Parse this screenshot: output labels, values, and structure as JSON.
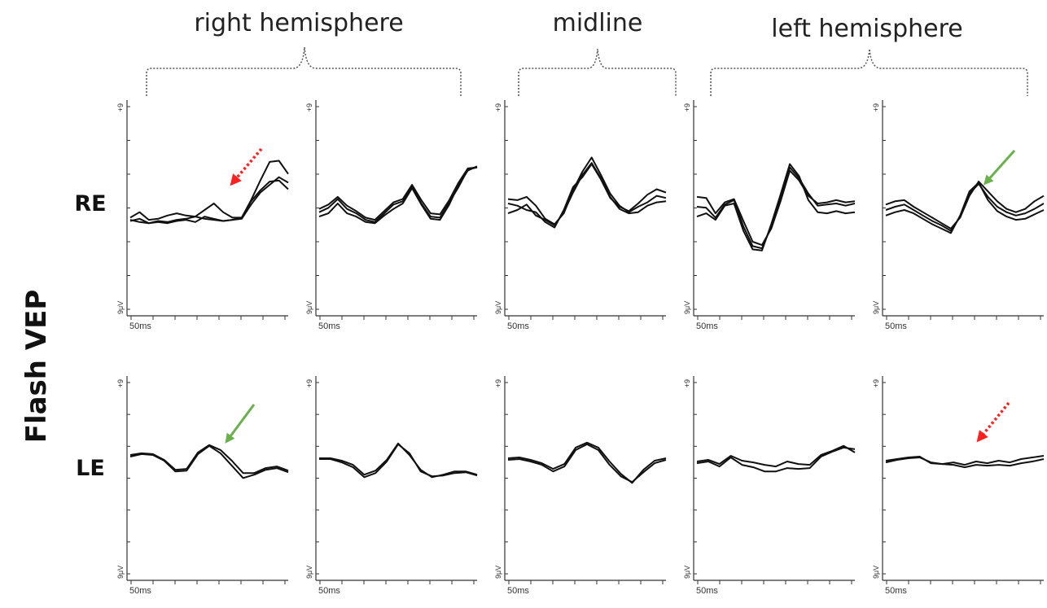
{
  "figure": {
    "y_title": "Flash VEP",
    "groups": [
      {
        "label": "right hemisphere"
      },
      {
        "label": "midline"
      },
      {
        "label": "left hemisphere"
      }
    ],
    "rows": [
      {
        "label": "RE"
      },
      {
        "label": "LE"
      }
    ],
    "panel_axis": {
      "x_tick_label": "50ms",
      "y_top_label": "+9",
      "y_bottom_label": "9μV"
    },
    "colors": {
      "trace": "#111111",
      "axis": "#333333",
      "brace": "#555555",
      "arrow_red": "#ff2020",
      "arrow_green": "#6ab04c"
    }
  },
  "chart_data": {
    "type": "line",
    "title": "",
    "xlabel": "",
    "ylabel": "Flash VEP",
    "x_tick_label": "50ms",
    "y_unit": "μV",
    "ylim": [
      -9,
      9
    ],
    "grid": false,
    "panels": [
      {
        "row": "RE",
        "column": 1,
        "group": "right hemisphere",
        "annotations": [
          {
            "type": "arrow",
            "style": "dotted",
            "color": "#ff2020"
          }
        ],
        "series": [
          {
            "values": [
              -1.0,
              -0.5,
              -1.2,
              -1.1,
              -0.8,
              -0.6,
              -0.8,
              -0.9,
              -0.3,
              0.3,
              -0.5,
              -1.0,
              -1.0,
              0.5,
              1.5,
              2.3,
              2.4,
              1.6
            ]
          },
          {
            "values": [
              -1.2,
              -1.4,
              -1.5,
              -1.4,
              -1.5,
              -1.3,
              -1.2,
              -1.4,
              -0.9,
              -1.1,
              -1.3,
              -1.2,
              -1.1,
              0.2,
              1.3,
              2.0,
              2.7,
              2.2
            ]
          },
          {
            "values": [
              -1.3,
              -1.1,
              -1.5,
              -1.3,
              -1.4,
              -1.2,
              -1.1,
              -0.9,
              -1.1,
              -1.2,
              -1.3,
              -1.2,
              -1.0,
              0.6,
              2.4,
              4.1,
              4.2,
              3.0
            ]
          }
        ]
      },
      {
        "row": "RE",
        "column": 2,
        "group": "right hemisphere",
        "series": [
          {
            "values": [
              -0.5,
              -0.1,
              0.7,
              -0.2,
              -0.6,
              -1.2,
              -1.4,
              -0.6,
              0.2,
              0.5,
              1.8,
              0.3,
              -0.9,
              -1.0,
              0.4,
              1.8,
              3.4,
              3.6
            ]
          },
          {
            "values": [
              -0.9,
              -0.6,
              0.3,
              -0.6,
              -0.9,
              -1.4,
              -1.5,
              -0.8,
              -0.2,
              0.3,
              1.7,
              0.2,
              -1.1,
              -1.2,
              0.2,
              2.0,
              3.3,
              3.7
            ]
          },
          {
            "values": [
              -0.2,
              0.2,
              0.9,
              0.1,
              -0.4,
              -1.0,
              -1.2,
              -0.4,
              0.4,
              0.7,
              2.0,
              0.6,
              -0.6,
              -0.7,
              0.6,
              2.2,
              3.5,
              3.6
            ]
          }
        ]
      },
      {
        "row": "RE",
        "column": 3,
        "group": "midline",
        "series": [
          {
            "values": [
              0.3,
              0.1,
              -0.3,
              -0.5,
              -1.4,
              -1.9,
              -0.3,
              1.8,
              2.7,
              3.9,
              2.5,
              0.8,
              0.0,
              -0.4,
              0.3,
              1.1,
              1.6,
              1.3
            ]
          },
          {
            "values": [
              0.7,
              0.6,
              0.9,
              0.1,
              -1.1,
              -1.6,
              -0.6,
              1.5,
              3.2,
              4.5,
              2.9,
              1.2,
              0.1,
              -0.5,
              0.0,
              0.4,
              1.0,
              0.8
            ]
          },
          {
            "values": [
              -0.6,
              -0.3,
              0.2,
              -0.8,
              -1.2,
              -1.7,
              -0.5,
              1.3,
              2.9,
              4.0,
              2.6,
              0.9,
              -0.2,
              -0.6,
              -0.5,
              0.1,
              0.4,
              0.5
            ]
          }
        ]
      },
      {
        "row": "RE",
        "column": 4,
        "group": "left hemisphere",
        "series": [
          {
            "values": [
              0.9,
              0.8,
              -0.6,
              0.4,
              0.7,
              -1.3,
              -3.2,
              -3.5,
              -2.0,
              0.5,
              3.3,
              2.4,
              1.0,
              0.3,
              0.4,
              0.6,
              0.4,
              0.5
            ]
          },
          {
            "values": [
              0.0,
              -0.1,
              -1.0,
              0.2,
              0.6,
              -1.8,
              -3.6,
              -3.8,
              -1.8,
              0.8,
              3.6,
              2.6,
              1.2,
              0.1,
              0.2,
              0.3,
              0.1,
              0.3
            ]
          },
          {
            "values": [
              -0.9,
              -0.6,
              -1.2,
              0.1,
              0.3,
              -2.2,
              -3.9,
              -4.0,
              -1.6,
              1.1,
              3.9,
              2.8,
              0.6,
              -0.5,
              -0.6,
              -0.4,
              -0.6,
              -0.5
            ]
          }
        ]
      },
      {
        "row": "RE",
        "column": 5,
        "group": "left hemisphere",
        "annotations": [
          {
            "type": "arrow",
            "style": "solid",
            "color": "#6ab04c"
          }
        ],
        "series": [
          {
            "values": [
              0.2,
              0.5,
              0.6,
              0.0,
              -0.5,
              -1.0,
              -1.5,
              -2.0,
              -1.0,
              1.0,
              2.3,
              1.4,
              0.5,
              -0.2,
              -0.5,
              -0.2,
              0.5,
              1.0
            ]
          },
          {
            "values": [
              -0.3,
              0.0,
              0.2,
              -0.3,
              -0.8,
              -1.3,
              -1.7,
              -2.2,
              -0.9,
              1.2,
              2.1,
              0.9,
              0.0,
              -0.5,
              -0.8,
              -0.6,
              -0.2,
              0.3
            ]
          },
          {
            "values": [
              -0.8,
              -0.5,
              -0.3,
              -0.6,
              -1.1,
              -1.6,
              -2.0,
              -2.4,
              -0.8,
              1.4,
              2.2,
              0.6,
              -0.4,
              -0.9,
              -1.2,
              -1.1,
              -0.7,
              -0.3
            ]
          }
        ]
      },
      {
        "row": "LE",
        "column": 1,
        "group": "right hemisphere",
        "annotations": [
          {
            "type": "arrow",
            "style": "solid",
            "color": "#6ab04c"
          }
        ],
        "series": [
          {
            "values": [
              0.4,
              0.6,
              0.5,
              -0.2,
              -1.4,
              -1.3,
              0.7,
              1.6,
              1.0,
              -0.3,
              -1.8,
              -1.8,
              -1.2,
              -1.0,
              -1.5
            ]
          },
          {
            "values": [
              0.2,
              0.5,
              0.4,
              -0.3,
              -1.6,
              -1.5,
              0.5,
              1.5,
              0.6,
              -0.9,
              -2.4,
              -2.0,
              -1.4,
              -1.2,
              -1.7
            ]
          }
        ]
      },
      {
        "row": "LE",
        "column": 2,
        "group": "right hemisphere",
        "series": [
          {
            "values": [
              -0.1,
              -0.1,
              -0.5,
              -1.1,
              -2.3,
              -1.8,
              -0.4,
              1.7,
              0.6,
              -1.6,
              -2.2,
              -2.1,
              -1.8,
              -1.7,
              -2.1
            ]
          },
          {
            "values": [
              0.0,
              0.0,
              -0.3,
              -0.8,
              -2.0,
              -1.5,
              -0.2,
              1.8,
              0.4,
              -1.4,
              -2.3,
              -2.0,
              -1.6,
              -1.6,
              -2.0
            ]
          }
        ]
      },
      {
        "row": "LE",
        "column": 3,
        "group": "midline",
        "series": [
          {
            "values": [
              -0.2,
              -0.1,
              -0.4,
              -0.8,
              -1.6,
              -1.0,
              1.0,
              1.7,
              1.0,
              -0.8,
              -2.2,
              -2.9,
              -1.7,
              -0.6,
              -0.2
            ]
          },
          {
            "values": [
              0.0,
              0.1,
              -0.2,
              -0.6,
              -1.3,
              -0.7,
              1.3,
              1.9,
              1.3,
              -0.4,
              -1.9,
              -3.0,
              -1.4,
              -0.3,
              0.0
            ]
          }
        ]
      },
      {
        "row": "LE",
        "column": 4,
        "group": "left hemisphere",
        "series": [
          {
            "values": [
              -0.4,
              -0.2,
              -0.7,
              0.3,
              -0.3,
              -0.5,
              -0.8,
              -1.0,
              -0.4,
              -0.7,
              -0.8,
              0.4,
              0.9,
              1.5,
              0.7
            ]
          },
          {
            "values": [
              -0.6,
              -0.4,
              -1.0,
              0.1,
              -0.8,
              -1.1,
              -1.6,
              -1.6,
              -1.2,
              -1.3,
              -1.2,
              0.2,
              0.8,
              1.3,
              1.1
            ]
          }
        ]
      },
      {
        "row": "LE",
        "column": 5,
        "group": "left hemisphere",
        "annotations": [
          {
            "type": "arrow",
            "style": "dotted",
            "color": "#ff2020"
          }
        ],
        "series": [
          {
            "values": [
              -0.3,
              -0.1,
              0.1,
              0.2,
              -0.6,
              -0.7,
              -0.5,
              -0.8,
              -0.4,
              -0.6,
              -0.3,
              -0.5,
              -0.1,
              0.1,
              0.3
            ]
          },
          {
            "values": [
              -0.5,
              -0.2,
              0.0,
              0.1,
              -0.5,
              -0.7,
              -0.8,
              -1.1,
              -0.8,
              -0.9,
              -0.8,
              -0.9,
              -0.6,
              -0.4,
              -0.1
            ]
          }
        ]
      }
    ]
  }
}
